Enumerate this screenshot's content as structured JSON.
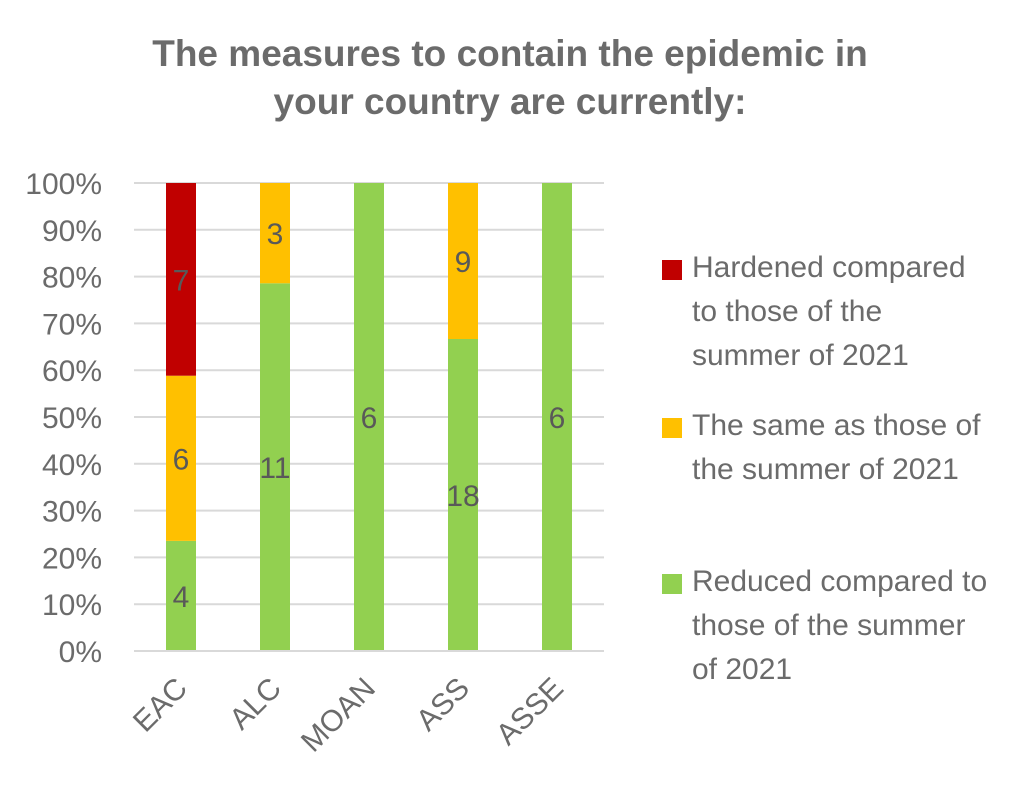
{
  "chart_data": {
    "type": "bar",
    "stacked": true,
    "normalized": true,
    "title": [
      "The measures to contain the epidemic in",
      "your country are currently:"
    ],
    "categories": [
      "EAC",
      "ALC",
      "MOAN",
      "ASS",
      "ASSE"
    ],
    "series": [
      {
        "name": "Reduced compared to those of the summer of 2021",
        "color": "#92d050",
        "values": [
          4,
          11,
          6,
          18,
          6
        ]
      },
      {
        "name": "The same as those of the summer of 2021",
        "color": "#ffc000",
        "values": [
          6,
          3,
          0,
          9,
          0
        ]
      },
      {
        "name": "Hardened compared to those of the summer of 2021",
        "color": "#c00000",
        "values": [
          7,
          0,
          0,
          0,
          0
        ]
      }
    ],
    "yticks": [
      "0%",
      "10%",
      "20%",
      "30%",
      "40%",
      "50%",
      "60%",
      "70%",
      "80%",
      "90%",
      "100%"
    ],
    "ylim": [
      0,
      100
    ],
    "grid": true,
    "legend_position": "right"
  },
  "legend": [
    {
      "label": [
        "Hardened compared",
        "to those of the",
        "summer of 2021"
      ],
      "color": "#c00000"
    },
    {
      "label": [
        "The same as those of",
        "the summer of 2021"
      ],
      "color": "#ffc000"
    },
    {
      "label": [
        "Reduced compared to",
        "those of the summer",
        "of 2021"
      ],
      "color": "#92d050"
    }
  ]
}
